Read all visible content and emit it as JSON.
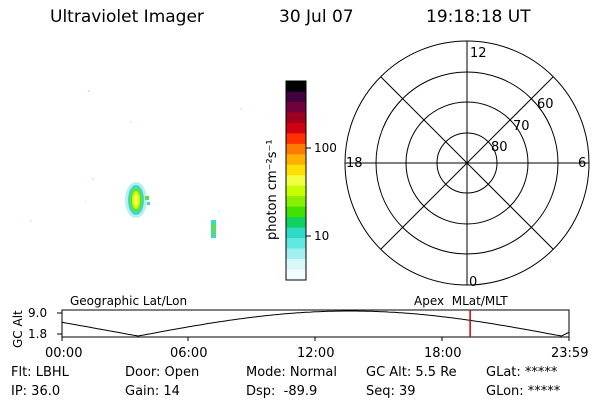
{
  "header": {
    "instrument": "Ultraviolet Imager",
    "date": "30 Jul 07",
    "time": "19:18:18 UT"
  },
  "colorbar": {
    "unit_label": "photon cm⁻²s⁻¹",
    "ticks": [
      "100",
      "10"
    ],
    "colors": [
      "#000000",
      "#400040",
      "#70003a",
      "#a00020",
      "#d00010",
      "#ff3000",
      "#ff7a00",
      "#ffb000",
      "#ffe000",
      "#f2ff40",
      "#c8ff00",
      "#88f000",
      "#40e000",
      "#10d060",
      "#30d8c8",
      "#60e8e0",
      "#a0f0f0",
      "#d8f8f8",
      "#f2fcfc"
    ]
  },
  "polar_plot": {
    "mlt_labels": {
      "top": "12",
      "left": "18",
      "right": "6",
      "bottom": "0"
    },
    "lat_labels": [
      "60",
      "70",
      "80"
    ]
  },
  "orbit_panel": {
    "left_label": "Geographic Lat/Lon",
    "right_label": "Apex  MLat/MLT",
    "y_axis_label": "GC Alt",
    "y_ticks": [
      "9.0",
      "1.8"
    ],
    "x_ticks": [
      "00:00",
      "06:00",
      "12:00",
      "18:00",
      "23:59"
    ],
    "current_time_fraction": 0.805,
    "marker_color": "#cc0000"
  },
  "status": {
    "row1": {
      "filter": "Flt: LBHL",
      "door": "Door: Open",
      "mode": "Mode: Normal",
      "gc_alt": "GC Alt: 5.5 Re",
      "glat": "GLat: *****"
    },
    "row2": {
      "ip": "IP: 36.0",
      "gain": "Gain: 14",
      "dsp": "Dsp:  -89.9",
      "seq": "Seq: 39",
      "glon": "GLon: *****"
    }
  }
}
